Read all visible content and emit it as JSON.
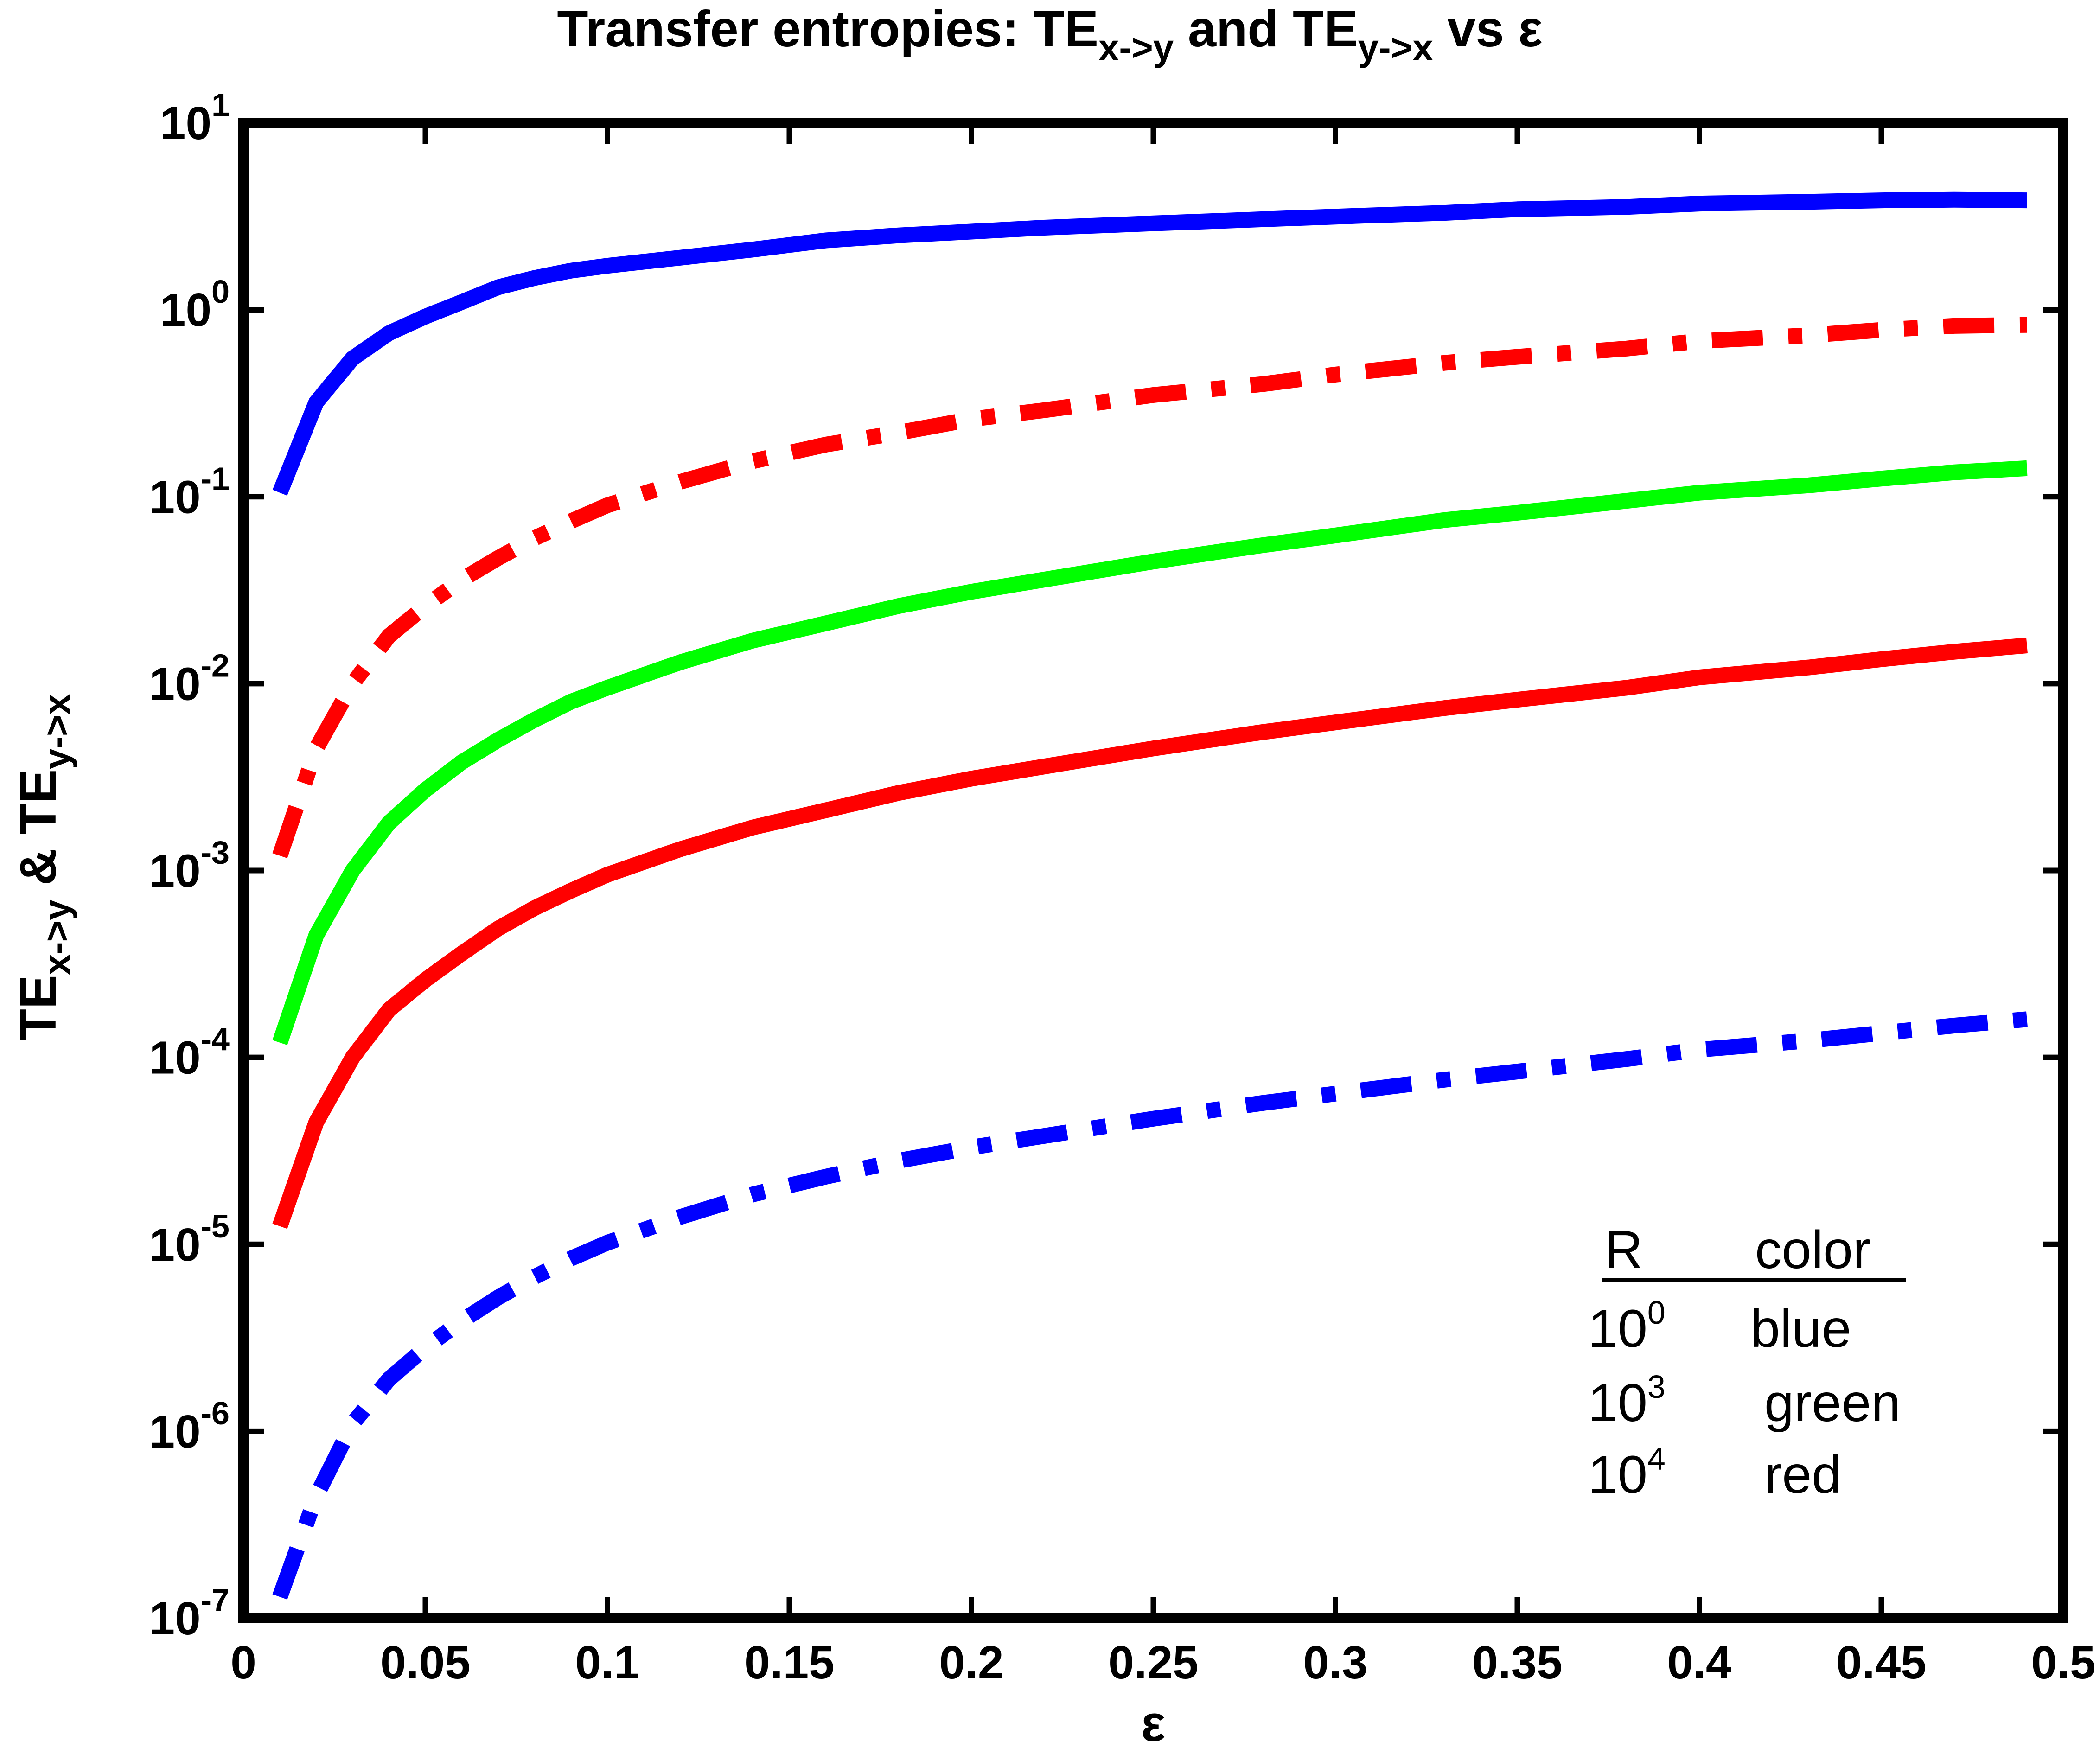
{
  "chart_data": {
    "type": "line",
    "title": {
      "prefix": "Transfer entropies: TE",
      "sub1": "x->y",
      "mid": " and TE",
      "sub2": "y->x",
      "suffix": " vs ε"
    },
    "xlabel": "ε",
    "ylabel": {
      "part1": "TE",
      "sub1": "x->y",
      "part2": " & TE",
      "sub2": "y->x"
    },
    "xlim": [
      0,
      0.5
    ],
    "ylim": [
      1e-07,
      10
    ],
    "yscale": "log",
    "x_ticks": [
      "0",
      "0.05",
      "0.1",
      "0.15",
      "0.2",
      "0.25",
      "0.3",
      "0.35",
      "0.4",
      "0.45",
      "0.5"
    ],
    "x_tick_values": [
      0,
      0.05,
      0.1,
      0.15,
      0.2,
      0.25,
      0.3,
      0.35,
      0.4,
      0.45,
      0.5
    ],
    "y_tick_exponents": [
      "1",
      "0",
      "-1",
      "-2",
      "-3",
      "-4",
      "-5",
      "-6",
      "-7"
    ],
    "y_tick_base": "10",
    "grid": false,
    "series": [
      {
        "color": "#0000ff",
        "style": "solid",
        "x": [
          0.01,
          0.02,
          0.03,
          0.04,
          0.05,
          0.06,
          0.07,
          0.08,
          0.09,
          0.1,
          0.12,
          0.14,
          0.16,
          0.18,
          0.2,
          0.22,
          0.25,
          0.28,
          0.3,
          0.33,
          0.35,
          0.38,
          0.4,
          0.43,
          0.45,
          0.47,
          0.49
        ],
        "y": [
          0.105,
          0.32,
          0.55,
          0.75,
          0.92,
          1.1,
          1.32,
          1.48,
          1.62,
          1.72,
          1.9,
          2.1,
          2.35,
          2.5,
          2.62,
          2.75,
          2.9,
          3.05,
          3.15,
          3.3,
          3.45,
          3.55,
          3.7,
          3.78,
          3.85,
          3.88,
          3.85
        ]
      },
      {
        "color": "#ff0000",
        "style": "dashdot",
        "x": [
          0.01,
          0.02,
          0.03,
          0.04,
          0.05,
          0.06,
          0.07,
          0.08,
          0.09,
          0.1,
          0.12,
          0.14,
          0.16,
          0.18,
          0.2,
          0.22,
          0.25,
          0.28,
          0.3,
          0.33,
          0.35,
          0.38,
          0.4,
          0.43,
          0.45,
          0.47,
          0.49
        ],
        "y": [
          0.0012,
          0.0045,
          0.01,
          0.018,
          0.026,
          0.036,
          0.047,
          0.06,
          0.074,
          0.09,
          0.12,
          0.155,
          0.19,
          0.22,
          0.26,
          0.29,
          0.35,
          0.4,
          0.45,
          0.52,
          0.56,
          0.62,
          0.68,
          0.73,
          0.78,
          0.82,
          0.83
        ]
      },
      {
        "color": "#00ff00",
        "style": "solid",
        "x": [
          0.01,
          0.02,
          0.03,
          0.04,
          0.05,
          0.06,
          0.07,
          0.08,
          0.09,
          0.1,
          0.12,
          0.14,
          0.16,
          0.18,
          0.2,
          0.22,
          0.25,
          0.28,
          0.3,
          0.33,
          0.35,
          0.38,
          0.4,
          0.43,
          0.45,
          0.47,
          0.49
        ],
        "y": [
          0.00012,
          0.00045,
          0.001,
          0.0018,
          0.0027,
          0.0038,
          0.005,
          0.0064,
          0.008,
          0.0095,
          0.013,
          0.017,
          0.021,
          0.026,
          0.031,
          0.036,
          0.045,
          0.055,
          0.062,
          0.075,
          0.082,
          0.095,
          0.105,
          0.115,
          0.125,
          0.135,
          0.142
        ]
      },
      {
        "color": "#ff0000",
        "style": "solid",
        "x": [
          0.01,
          0.02,
          0.03,
          0.04,
          0.05,
          0.06,
          0.07,
          0.08,
          0.09,
          0.1,
          0.12,
          0.14,
          0.16,
          0.18,
          0.2,
          0.22,
          0.25,
          0.28,
          0.3,
          0.33,
          0.35,
          0.38,
          0.4,
          0.43,
          0.45,
          0.47,
          0.49
        ],
        "y": [
          1.25e-05,
          4.5e-05,
          0.0001,
          0.00018,
          0.00026,
          0.00036,
          0.00049,
          0.00063,
          0.00078,
          0.00095,
          0.0013,
          0.0017,
          0.0021,
          0.0026,
          0.0031,
          0.0036,
          0.0045,
          0.0055,
          0.0062,
          0.0074,
          0.0082,
          0.0095,
          0.0108,
          0.0122,
          0.0135,
          0.0148,
          0.016
        ]
      },
      {
        "color": "#0000ff",
        "style": "dashdot",
        "x": [
          0.01,
          0.02,
          0.03,
          0.04,
          0.05,
          0.06,
          0.07,
          0.08,
          0.09,
          0.1,
          0.12,
          0.14,
          0.16,
          0.18,
          0.2,
          0.22,
          0.25,
          0.28,
          0.3,
          0.33,
          0.35,
          0.38,
          0.4,
          0.43,
          0.45,
          0.47,
          0.49
        ],
        "y": [
          1.3e-07,
          4.5e-07,
          1.1e-06,
          1.9e-06,
          2.8e-06,
          3.9e-06,
          5.2e-06,
          6.7e-06,
          8.4e-06,
          1.02e-05,
          1.4e-05,
          1.85e-05,
          2.3e-05,
          2.8e-05,
          3.3e-05,
          3.8e-05,
          4.7e-05,
          5.7e-05,
          6.4e-05,
          7.6e-05,
          8.4e-05,
          9.8e-05,
          0.00011,
          0.000123,
          0.000135,
          0.000148,
          0.00016
        ]
      }
    ],
    "legend": {
      "placement": "bottom-right",
      "header_r": "R",
      "header_color": "color",
      "rows": [
        {
          "base": "10",
          "exp": "0",
          "color_name": "blue"
        },
        {
          "base": "10",
          "exp": "3",
          "color_name": "green"
        },
        {
          "base": "10",
          "exp": "4",
          "color_name": "red"
        }
      ]
    }
  }
}
